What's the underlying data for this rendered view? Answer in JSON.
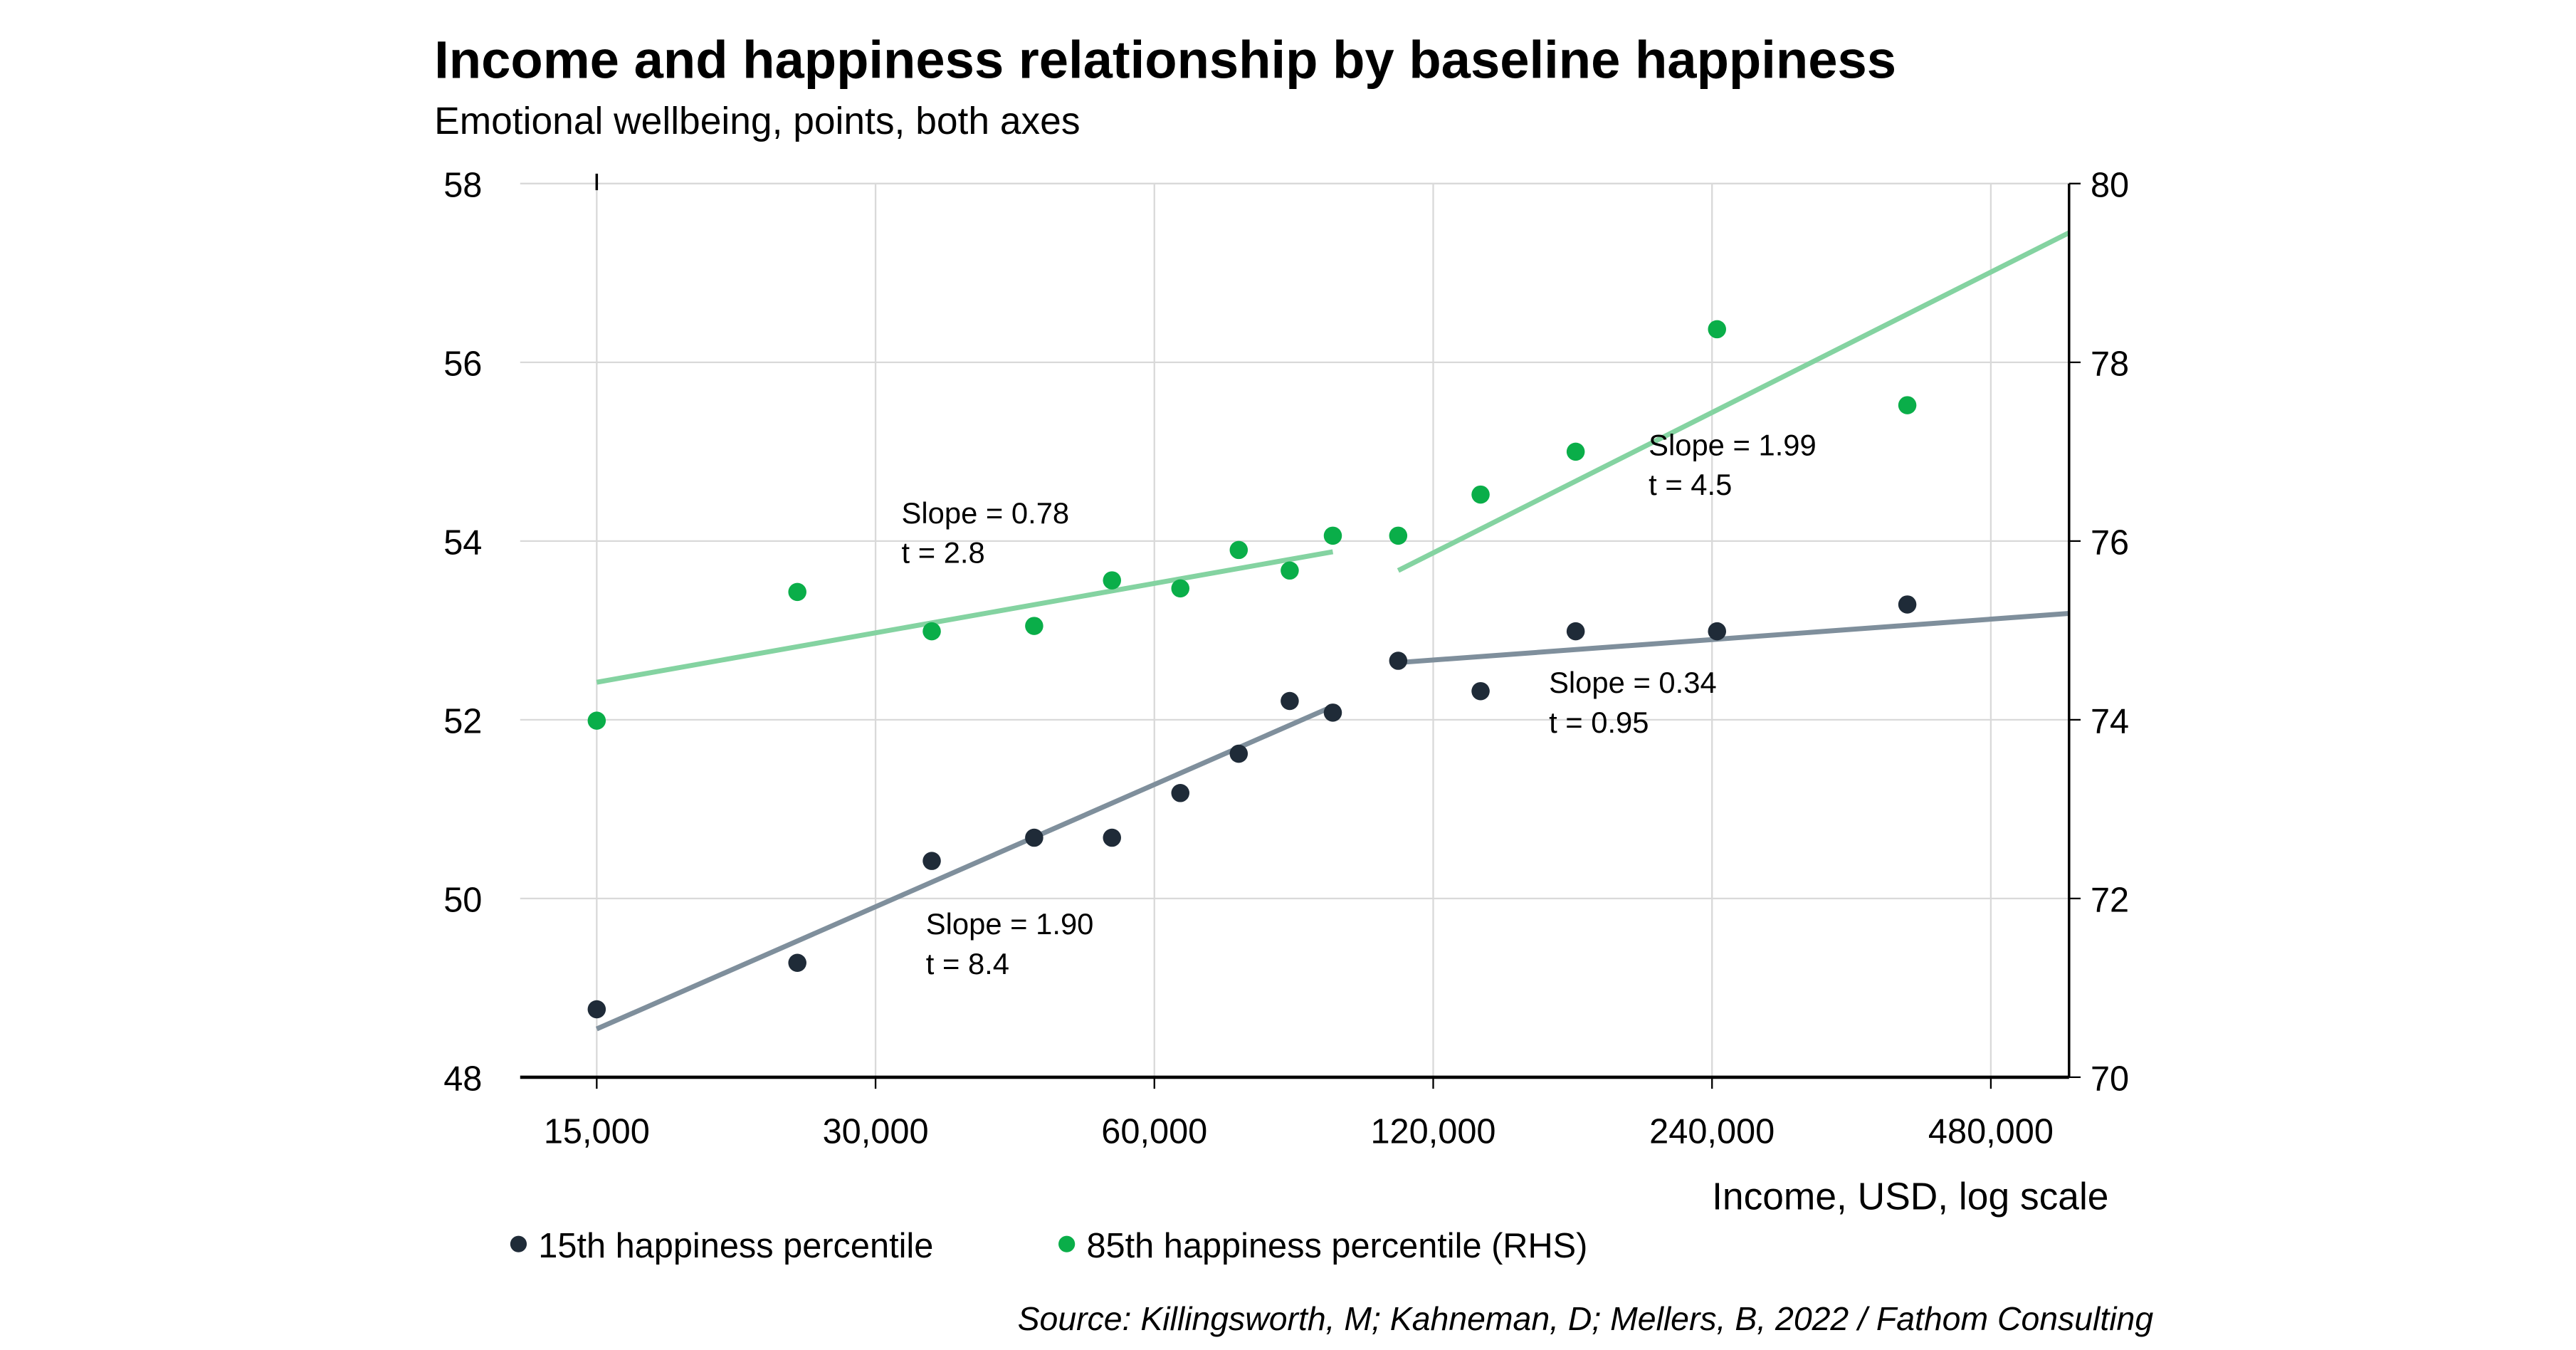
{
  "chart_data": {
    "type": "scatter",
    "title": "Income and happiness relationship by baseline happiness",
    "subtitle": "Emotional wellbeing, points, both axes",
    "xlabel": "Income, USD, log scale",
    "x_scale": "log2",
    "xlim": [
      12400,
      583000
    ],
    "x_ticks": [
      15000,
      30000,
      60000,
      120000,
      240000,
      480000
    ],
    "x_tick_labels": [
      "15,000",
      "30,000",
      "60,000",
      "120,000",
      "240,000",
      "480,000"
    ],
    "ylim_left": [
      48,
      58
    ],
    "y_ticks_left": [
      "48",
      "50",
      "52",
      "54",
      "56",
      "58"
    ],
    "ylim_right": [
      70,
      80
    ],
    "y_ticks_right": [
      "70",
      "72",
      "74",
      "76",
      "78",
      "80"
    ],
    "grid": true,
    "legend_position": "bottom-left",
    "series": [
      {
        "name": "15th happiness percentile",
        "axis": "left",
        "color": "#1f2b38",
        "x": [
          15000,
          24700,
          34500,
          44500,
          54000,
          64000,
          74000,
          84000,
          93500,
          110000,
          135000,
          171000,
          243000,
          390000
        ],
        "y": [
          48.76,
          49.28,
          50.42,
          50.68,
          50.68,
          51.18,
          51.62,
          52.21,
          52.08,
          52.66,
          52.32,
          52.99,
          52.99,
          53.29
        ]
      },
      {
        "name": "85th happiness percentile (RHS)",
        "axis": "right",
        "color": "#0aae49",
        "x": [
          15000,
          24700,
          34500,
          44500,
          54000,
          64000,
          74000,
          84000,
          93500,
          110000,
          135000,
          171000,
          243000,
          390000
        ],
        "y": [
          73.99,
          75.43,
          74.99,
          75.05,
          75.56,
          75.47,
          75.9,
          75.67,
          76.06,
          76.06,
          76.52,
          77.0,
          78.37,
          77.52
        ]
      }
    ],
    "fit_lines": [
      {
        "axis": "left",
        "color": "#7f8f9c",
        "x": [
          15000,
          93500
        ],
        "y": [
          48.54,
          52.15
        ],
        "label": [
          "Slope = 1.90",
          "t =  8.4"
        ],
        "label_at": [
          34000,
          49.6
        ]
      },
      {
        "axis": "left",
        "color": "#7f8f9c",
        "x": [
          110000,
          583000
        ],
        "y": [
          52.64,
          53.19
        ],
        "label": [
          "Slope = 0.34",
          "t =  0.95"
        ],
        "label_at": [
          160000,
          52.3
        ]
      },
      {
        "axis": "right",
        "color": "#84d3a1",
        "x": [
          15000,
          93500
        ],
        "y": [
          74.42,
          75.88
        ],
        "label": [
          "Slope = 0.78",
          "t =  2.8"
        ],
        "label_at": [
          32000,
          76.2
        ]
      },
      {
        "axis": "right",
        "color": "#84d3a1",
        "x": [
          110000,
          583000
        ],
        "y": [
          75.67,
          79.45
        ],
        "label": [
          "Slope = 1.99",
          "t =  4.5"
        ],
        "label_at": [
          205000,
          76.96
        ]
      }
    ],
    "source": "Source: Killingsworth, M; Kahneman, D; Mellers, B, 2022 / Fathom Consulting"
  }
}
